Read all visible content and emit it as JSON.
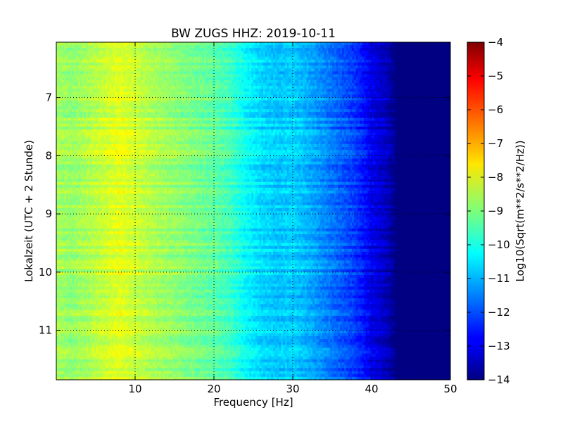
{
  "chart_data": {
    "type": "heatmap",
    "title": "BW ZUGS HHZ: 2019-10-11",
    "xlabel": "Frequency [Hz]",
    "ylabel": "Lokalzeit (UTC + 2 Stunde)",
    "xlim": [
      0,
      50
    ],
    "ylim": [
      6.05,
      11.85
    ],
    "y_inverted": true,
    "xticks": [
      10,
      20,
      30,
      40,
      50
    ],
    "yticks": [
      7,
      8,
      9,
      10,
      11
    ],
    "grid": true,
    "colormap": "jet",
    "colorbar": {
      "label": "Log10(Sqrt(m**2/s**2/Hz))",
      "range": [
        -14,
        -4
      ],
      "ticks": [
        -4,
        -5,
        -6,
        -7,
        -8,
        -9,
        -10,
        -11,
        -12,
        -13,
        -14
      ]
    },
    "spectral_profile": {
      "frequency_hz": [
        0,
        2,
        5,
        8,
        12,
        16,
        20,
        22,
        24,
        26,
        28,
        30,
        32,
        34,
        36,
        38,
        40,
        42,
        43,
        44,
        50
      ],
      "log10_amplitude": [
        -8.6,
        -8.8,
        -8.4,
        -8.0,
        -8.5,
        -8.9,
        -9.3,
        -9.6,
        -10.2,
        -10.6,
        -10.8,
        -10.7,
        -11.0,
        -11.4,
        -11.8,
        -12.2,
        -12.9,
        -13.4,
        -13.9,
        -14.0,
        -14.0
      ]
    }
  }
}
